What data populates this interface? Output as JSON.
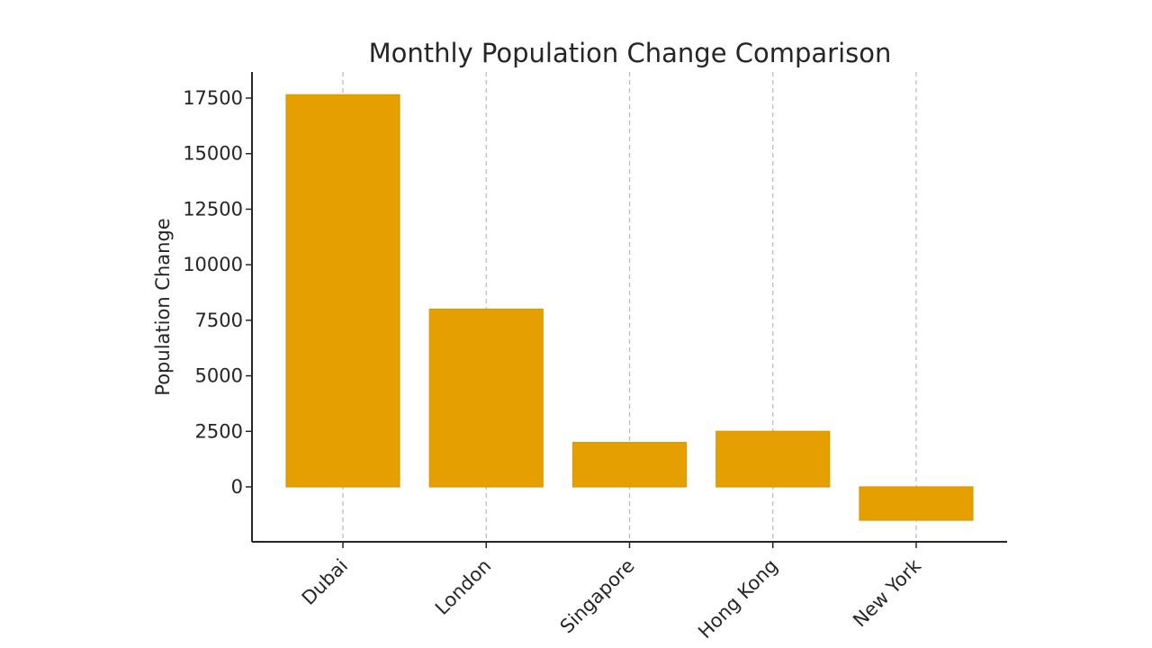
{
  "chart_data": {
    "type": "bar",
    "title": "Monthly Population Change Comparison",
    "xlabel": "",
    "ylabel": "Population Change",
    "categories": [
      "Dubai",
      "London",
      "Singapore",
      "Hong Kong",
      "New York"
    ],
    "values": [
      17650,
      8000,
      2000,
      2500,
      -1500
    ],
    "ylim": [
      -2500,
      18700
    ],
    "yticks": [
      0,
      2500,
      5000,
      7500,
      10000,
      12500,
      15000,
      17500
    ],
    "grid": "vertical-dashed",
    "bar_color": "#E5A000",
    "bar_edge_color": "#D99A00"
  }
}
